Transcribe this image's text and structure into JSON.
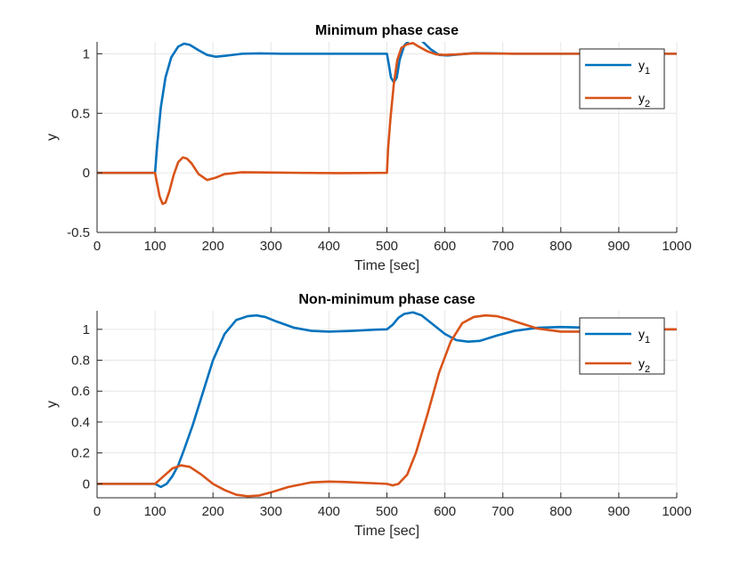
{
  "figure": {
    "background": "#ffffff"
  },
  "colors": {
    "series1": "#0072BD",
    "series2": "#D95319",
    "grid": "#e6e6e6",
    "axis": "#262626"
  },
  "chart_data": [
    {
      "type": "line",
      "title": "Minimum phase case",
      "xlabel": "Time [sec]",
      "ylabel": "y",
      "xlim": [
        0,
        1000
      ],
      "ylim": [
        -0.5,
        1.1
      ],
      "xticks": [
        0,
        100,
        200,
        300,
        400,
        500,
        600,
        700,
        800,
        900,
        1000
      ],
      "yticks": [
        -0.5,
        0,
        0.5,
        1
      ],
      "ytick_labels": [
        "-0.5",
        "0",
        "0.5",
        "1"
      ],
      "grid": true,
      "legend": "top-right",
      "series": [
        {
          "name_base": "y",
          "name_sub": "1",
          "color": "#0072BD",
          "x": [
            0,
            100,
            104,
            110,
            118,
            128,
            140,
            150,
            160,
            175,
            190,
            205,
            225,
            250,
            280,
            320,
            400,
            490,
            500,
            503,
            507,
            512,
            517,
            522,
            530,
            540,
            550,
            560,
            575,
            590,
            605,
            625,
            650,
            680,
            720,
            800,
            1000
          ],
          "y": [
            0,
            0,
            0.25,
            0.55,
            0.8,
            0.97,
            1.06,
            1.085,
            1.075,
            1.03,
            0.99,
            0.975,
            0.985,
            1.0,
            1.003,
            1.0,
            1.0,
            1.0,
            1.0,
            0.92,
            0.8,
            0.76,
            0.8,
            0.95,
            1.07,
            1.12,
            1.13,
            1.11,
            1.04,
            0.99,
            0.985,
            0.995,
            1.005,
            1.003,
            1.0,
            1.0,
            1.0
          ]
        },
        {
          "name_base": "y",
          "name_sub": "2",
          "color": "#D95319",
          "x": [
            0,
            100,
            104,
            108,
            113,
            118,
            125,
            132,
            140,
            148,
            155,
            163,
            175,
            190,
            205,
            220,
            250,
            290,
            350,
            420,
            495,
            500,
            502,
            506,
            512,
            518,
            525,
            535,
            545,
            555,
            570,
            585,
            600,
            620,
            650,
            680,
            720,
            800,
            1000
          ],
          "y": [
            0,
            0,
            -0.1,
            -0.2,
            -0.26,
            -0.25,
            -0.15,
            -0.02,
            0.09,
            0.13,
            0.12,
            0.08,
            -0.01,
            -0.06,
            -0.04,
            -0.01,
            0.005,
            0.003,
            0.0,
            -0.002,
            0.0,
            0.0,
            0.2,
            0.45,
            0.75,
            0.95,
            1.05,
            1.08,
            1.09,
            1.06,
            1.02,
            0.995,
            0.99,
            0.995,
            1.003,
            1.002,
            1.0,
            1.0,
            1.0
          ]
        }
      ]
    },
    {
      "type": "line",
      "title": "Non-minimum phase case",
      "xlabel": "Time [sec]",
      "ylabel": "y",
      "xlim": [
        0,
        1000
      ],
      "ylim": [
        -0.09,
        1.12
      ],
      "xticks": [
        0,
        100,
        200,
        300,
        400,
        500,
        600,
        700,
        800,
        900,
        1000
      ],
      "yticks": [
        0,
        0.2,
        0.4,
        0.6,
        0.8,
        1
      ],
      "ytick_labels": [
        "0",
        "0.2",
        "0.4",
        "0.6",
        "0.8",
        "1"
      ],
      "grid": true,
      "legend": "top-right",
      "series": [
        {
          "name_base": "y",
          "name_sub": "1",
          "color": "#0072BD",
          "x": [
            0,
            100,
            110,
            120,
            130,
            140,
            150,
            165,
            180,
            200,
            220,
            240,
            260,
            275,
            290,
            310,
            340,
            370,
            400,
            440,
            480,
            500,
            510,
            520,
            530,
            545,
            560,
            580,
            600,
            620,
            640,
            660,
            690,
            720,
            760,
            800,
            850,
            900,
            1000
          ],
          "y": [
            0,
            0,
            -0.02,
            0.0,
            0.05,
            0.12,
            0.22,
            0.38,
            0.56,
            0.8,
            0.97,
            1.06,
            1.085,
            1.09,
            1.08,
            1.05,
            1.01,
            0.99,
            0.985,
            0.99,
            0.998,
            1.0,
            1.03,
            1.075,
            1.1,
            1.11,
            1.09,
            1.03,
            0.97,
            0.93,
            0.92,
            0.925,
            0.96,
            0.99,
            1.01,
            1.015,
            1.01,
            1.0,
            1.0
          ]
        },
        {
          "name_base": "y",
          "name_sub": "2",
          "color": "#D95319",
          "x": [
            0,
            100,
            115,
            130,
            145,
            160,
            180,
            200,
            220,
            240,
            260,
            280,
            300,
            330,
            370,
            400,
            430,
            470,
            500,
            510,
            520,
            535,
            550,
            570,
            590,
            610,
            630,
            650,
            670,
            690,
            710,
            730,
            760,
            800,
            850,
            900,
            950,
            1000
          ],
          "y": [
            0,
            0,
            0.05,
            0.1,
            0.12,
            0.11,
            0.06,
            0.0,
            -0.04,
            -0.07,
            -0.08,
            -0.075,
            -0.055,
            -0.02,
            0.01,
            0.015,
            0.012,
            0.005,
            0.0,
            -0.01,
            0.0,
            0.06,
            0.2,
            0.45,
            0.72,
            0.92,
            1.04,
            1.08,
            1.09,
            1.085,
            1.065,
            1.04,
            1.005,
            0.985,
            0.985,
            0.995,
            1.0,
            1.0
          ]
        }
      ]
    }
  ]
}
